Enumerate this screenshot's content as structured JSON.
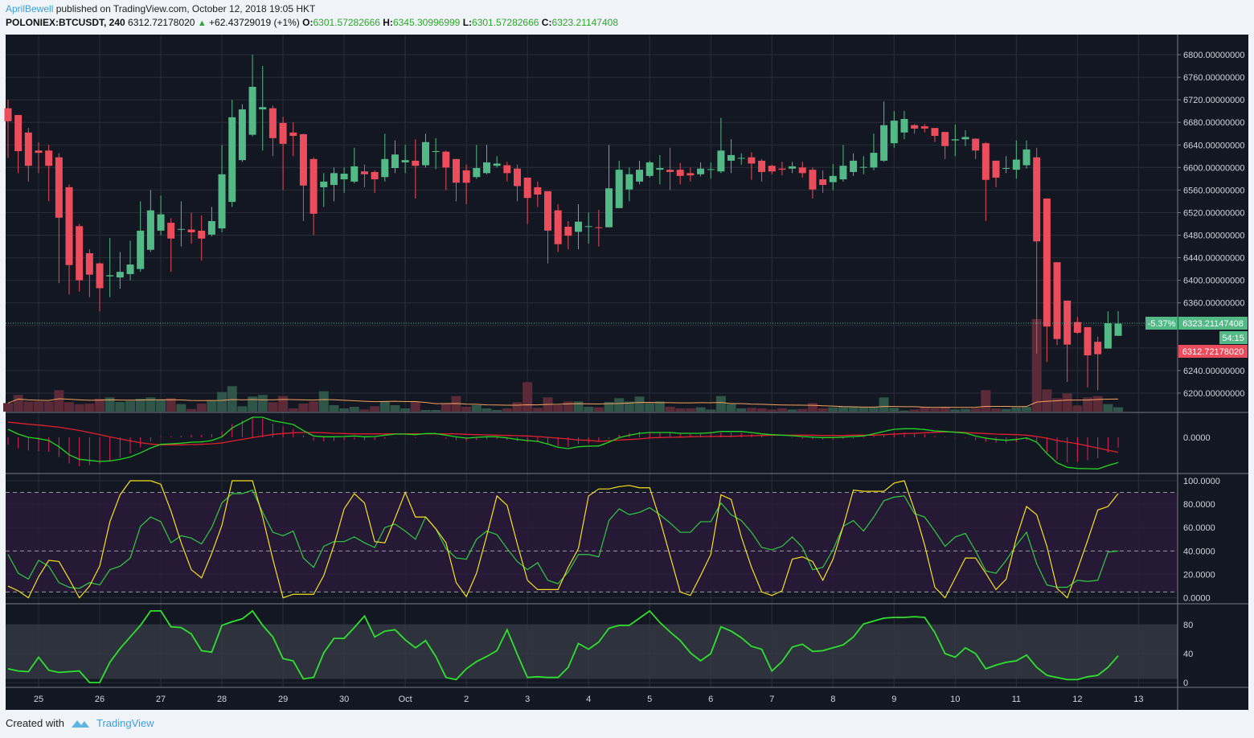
{
  "header": {
    "author": "AprilBewell",
    "published": "published on TradingView.com, October 12, 2018 19:05 HKT",
    "symbol": "POLONIEX:BTCUSDT, 240",
    "last_price": "6312.72178020",
    "change": "+62.43729019 (+1%)",
    "ohlc": [
      {
        "label": "O:",
        "value": "6301.57282666"
      },
      {
        "label": "H:",
        "value": "6345.30996999"
      },
      {
        "label": "L:",
        "value": "6301.57282666"
      },
      {
        "label": "C:",
        "value": "6323.21147408"
      }
    ]
  },
  "price_scale": {
    "current_change_pct": "-5.37%",
    "current_close_label": "6323.21147408",
    "countdown": "54:15",
    "last_price_label": "6312.72178020"
  },
  "footer": {
    "created_with": "Created with",
    "brand": "TradingView"
  },
  "colors": {
    "up": "#53b987",
    "down": "#eb4d5c",
    "background": "#131722",
    "grid": "#2a2e39",
    "accent": "#3b9fe0"
  },
  "chart_data": {
    "type": "candlestick",
    "title": "POLONIEX:BTCUSDT, 240",
    "timeframe_hours": 4,
    "ylim": [
      6150,
      6830
    ],
    "y_ticks": [
      "6800.00000000",
      "6760.00000000",
      "6720.00000000",
      "6680.00000000",
      "6640.00000000",
      "6600.00000000",
      "6560.00000000",
      "6520.00000000",
      "6480.00000000",
      "6440.00000000",
      "6400.00000000",
      "6360.00000000",
      "6240.00000000",
      "6200.00000000"
    ],
    "y_tick_values": [
      6800,
      6760,
      6720,
      6680,
      6640,
      6600,
      6560,
      6520,
      6480,
      6440,
      6400,
      6360,
      6240,
      6200
    ],
    "x_ticks": [
      {
        "label": "25",
        "index": 3
      },
      {
        "label": "26",
        "index": 9
      },
      {
        "label": "27",
        "index": 15
      },
      {
        "label": "28",
        "index": 21
      },
      {
        "label": "29",
        "index": 27
      },
      {
        "label": "30",
        "index": 33
      },
      {
        "label": "Oct",
        "index": 39
      },
      {
        "label": "2",
        "index": 45
      },
      {
        "label": "3",
        "index": 51
      },
      {
        "label": "4",
        "index": 57
      },
      {
        "label": "5",
        "index": 63
      },
      {
        "label": "6",
        "index": 69
      },
      {
        "label": "7",
        "index": 75
      },
      {
        "label": "8",
        "index": 81
      },
      {
        "label": "9",
        "index": 87
      },
      {
        "label": "10",
        "index": 93
      },
      {
        "label": "11",
        "index": 99
      },
      {
        "label": "12",
        "index": 105
      },
      {
        "label": "13",
        "index": 111
      }
    ],
    "ohlc": [
      [
        6705,
        6720,
        6617,
        6682
      ],
      [
        6693,
        6693,
        6590,
        6629
      ],
      [
        6662,
        6670,
        6575,
        6603
      ],
      [
        6630,
        6645,
        6590,
        6626
      ],
      [
        6630,
        6640,
        6540,
        6603
      ],
      [
        6618,
        6625,
        6395,
        6511
      ],
      [
        6565,
        6570,
        6375,
        6427
      ],
      [
        6496,
        6500,
        6380,
        6400
      ],
      [
        6448,
        6455,
        6370,
        6410
      ],
      [
        6430,
        6432,
        6345,
        6386
      ],
      [
        6407,
        6475,
        6370,
        6409
      ],
      [
        6405,
        6450,
        6385,
        6415
      ],
      [
        6411,
        6470,
        6400,
        6428
      ],
      [
        6420,
        6540,
        6415,
        6488
      ],
      [
        6454,
        6560,
        6450,
        6524
      ],
      [
        6488,
        6550,
        6480,
        6517
      ],
      [
        6502,
        6510,
        6415,
        6474
      ],
      [
        6490,
        6540,
        6460,
        6491
      ],
      [
        6490,
        6520,
        6465,
        6485
      ],
      [
        6488,
        6515,
        6435,
        6474
      ],
      [
        6481,
        6530,
        6478,
        6505
      ],
      [
        6492,
        6640,
        6485,
        6588
      ],
      [
        6539,
        6720,
        6530,
        6689
      ],
      [
        6613,
        6712,
        6610,
        6703
      ],
      [
        6658,
        6800,
        6655,
        6743
      ],
      [
        6703,
        6780,
        6630,
        6707
      ],
      [
        6705,
        6710,
        6620,
        6652
      ],
      [
        6679,
        6690,
        6560,
        6642
      ],
      [
        6662,
        6680,
        6620,
        6656
      ],
      [
        6659,
        6660,
        6505,
        6568
      ],
      [
        6615,
        6618,
        6480,
        6518
      ],
      [
        6565,
        6590,
        6530,
        6575
      ],
      [
        6569,
        6600,
        6540,
        6590
      ],
      [
        6579,
        6600,
        6555,
        6589
      ],
      [
        6575,
        6635,
        6572,
        6602
      ],
      [
        6593,
        6605,
        6565,
        6588
      ],
      [
        6592,
        6595,
        6555,
        6579
      ],
      [
        6583,
        6660,
        6575,
        6615
      ],
      [
        6599,
        6648,
        6590,
        6623
      ],
      [
        6609,
        6640,
        6590,
        6613
      ],
      [
        6612,
        6650,
        6545,
        6603
      ],
      [
        6604,
        6660,
        6600,
        6645
      ],
      [
        6628,
        6652,
        6597,
        6629
      ],
      [
        6628,
        6630,
        6560,
        6600
      ],
      [
        6615,
        6615,
        6540,
        6573
      ],
      [
        6595,
        6605,
        6535,
        6573
      ],
      [
        6583,
        6640,
        6580,
        6599
      ],
      [
        6590,
        6640,
        6588,
        6609
      ],
      [
        6603,
        6620,
        6600,
        6607
      ],
      [
        6604,
        6610,
        6575,
        6590
      ],
      [
        6598,
        6605,
        6540,
        6567
      ],
      [
        6582,
        6582,
        6500,
        6546
      ],
      [
        6565,
        6575,
        6530,
        6552
      ],
      [
        6558,
        6558,
        6430,
        6488
      ],
      [
        6524,
        6535,
        6450,
        6464
      ],
      [
        6495,
        6505,
        6455,
        6479
      ],
      [
        6486,
        6535,
        6455,
        6504
      ],
      [
        6495,
        6520,
        6465,
        6496
      ],
      [
        6494,
        6525,
        6460,
        6493
      ],
      [
        6494,
        6640,
        6494,
        6563
      ],
      [
        6528,
        6612,
        6528,
        6596
      ],
      [
        6561,
        6600,
        6540,
        6588
      ],
      [
        6575,
        6612,
        6570,
        6596
      ],
      [
        6585,
        6612,
        6582,
        6609
      ],
      [
        6596,
        6622,
        6570,
        6599
      ],
      [
        6596,
        6635,
        6560,
        6592
      ],
      [
        6596,
        6608,
        6570,
        6585
      ],
      [
        6590,
        6600,
        6575,
        6586
      ],
      [
        6588,
        6609,
        6584,
        6598
      ],
      [
        6596,
        6609,
        6580,
        6597
      ],
      [
        6593,
        6688,
        6590,
        6630
      ],
      [
        6612,
        6650,
        6590,
        6622
      ],
      [
        6616,
        6625,
        6605,
        6617
      ],
      [
        6618,
        6627,
        6578,
        6607
      ],
      [
        6612,
        6615,
        6575,
        6592
      ],
      [
        6603,
        6605,
        6588,
        6593
      ],
      [
        6598,
        6610,
        6586,
        6596
      ],
      [
        6598,
        6610,
        6590,
        6602
      ],
      [
        6600,
        6610,
        6582,
        6590
      ],
      [
        6596,
        6600,
        6545,
        6561
      ],
      [
        6579,
        6595,
        6555,
        6569
      ],
      [
        6574,
        6606,
        6560,
        6585
      ],
      [
        6579,
        6640,
        6575,
        6603
      ],
      [
        6592,
        6625,
        6585,
        6612
      ],
      [
        6600,
        6620,
        6588,
        6601
      ],
      [
        6600,
        6660,
        6595,
        6626
      ],
      [
        6612,
        6717,
        6610,
        6675
      ],
      [
        6643,
        6700,
        6635,
        6683
      ],
      [
        6662,
        6700,
        6650,
        6686
      ],
      [
        6675,
        6677,
        6660,
        6669
      ],
      [
        6673,
        6677,
        6662,
        6669
      ],
      [
        6670,
        6670,
        6645,
        6656
      ],
      [
        6663,
        6663,
        6615,
        6638
      ],
      [
        6648,
        6676,
        6620,
        6650
      ],
      [
        6650,
        6666,
        6638,
        6654
      ],
      [
        6651,
        6652,
        6615,
        6630
      ],
      [
        6643,
        6645,
        6505,
        6578
      ],
      [
        6612,
        6612,
        6565,
        6582
      ],
      [
        6598,
        6620,
        6590,
        6599
      ],
      [
        6596,
        6648,
        6580,
        6614
      ],
      [
        6604,
        6648,
        6598,
        6632
      ],
      [
        6618,
        6635,
        6270,
        6469
      ],
      [
        6545,
        6545,
        6255,
        6318
      ],
      [
        6432,
        6432,
        6285,
        6296
      ],
      [
        6364,
        6364,
        6220,
        6286
      ],
      [
        6326,
        6335,
        6305,
        6307
      ],
      [
        6317,
        6317,
        6210,
        6267
      ],
      [
        6291,
        6300,
        6205,
        6269
      ],
      [
        6279,
        6345,
        6279,
        6324
      ],
      [
        6301.57282666,
        6345.30996999,
        6301.57282666,
        6323.21147408
      ]
    ],
    "volume_relative": [
      32,
      62,
      38,
      38,
      38,
      80,
      35,
      28,
      30,
      48,
      53,
      36,
      40,
      48,
      53,
      46,
      50,
      28,
      10,
      30,
      40,
      73,
      95,
      20,
      56,
      62,
      35,
      58,
      12,
      30,
      38,
      76,
      24,
      12,
      18,
      8,
      20,
      38,
      24,
      12,
      38,
      6,
      6,
      30,
      58,
      18,
      24,
      12,
      6,
      12,
      35,
      110,
      14,
      53,
      24,
      38,
      38,
      18,
      16,
      36,
      50,
      38,
      56,
      32,
      38,
      18,
      12,
      12,
      16,
      8,
      58,
      28,
      12,
      14,
      12,
      8,
      12,
      8,
      10,
      32,
      12,
      16,
      18,
      18,
      16,
      18,
      53,
      14,
      4,
      8,
      18,
      13,
      18,
      8,
      10,
      13,
      80,
      12,
      10,
      16,
      18,
      345,
      83,
      50,
      68,
      23,
      53,
      58,
      28,
      16
    ],
    "macd": {
      "macd": [
        15,
        6,
        0,
        -2.5,
        -6,
        -17.5,
        -32.5,
        -41,
        -43,
        -45,
        -44,
        -41,
        -36.5,
        -29,
        -20,
        -13,
        -12,
        -11,
        -9,
        -8.5,
        -6,
        1,
        17.5,
        27.5,
        37.5,
        37.5,
        31,
        27.5,
        24,
        12.5,
        2.5,
        1,
        1,
        1.5,
        2.5,
        1,
        1.5,
        4,
        6,
        6,
        5,
        7,
        7,
        4,
        1,
        -1.5,
        0,
        1,
        1,
        -1,
        -4,
        -6,
        -7.5,
        -12.5,
        -18.5,
        -21,
        -17.5,
        -16.5,
        -16,
        -9,
        -0.5,
        4,
        7.5,
        9,
        9,
        9,
        7.5,
        7.5,
        7.5,
        8.5,
        11,
        11,
        11,
        9,
        6.5,
        5,
        4,
        3,
        1.5,
        0.5,
        -0.5,
        -0.5,
        0.5,
        1.5,
        2.5,
        6.5,
        11,
        15,
        16,
        16,
        14.5,
        12,
        11,
        9.5,
        8,
        2.5,
        -1.5,
        -4,
        -5.5,
        -4,
        -1,
        -9,
        -30,
        -47.5,
        -56,
        -58,
        -58.5,
        -59,
        -52.5,
        -47
      ],
      "signal": [
        28.5,
        26.5,
        24.5,
        23,
        21,
        19,
        16,
        13,
        9,
        5,
        1,
        -3,
        -6.5,
        -10,
        -12.5,
        -14,
        -14,
        -14,
        -13.5,
        -13,
        -12,
        -10.5,
        -7,
        -4,
        -0.5,
        2.5,
        5.5,
        7,
        8.5,
        9,
        9,
        8.5,
        7.5,
        7,
        6.5,
        6.5,
        6.5,
        6.5,
        6.5,
        6.5,
        6.5,
        6.5,
        6.5,
        6.5,
        6.5,
        5.5,
        5,
        4.5,
        4,
        3.5,
        3,
        2.5,
        1.5,
        0,
        -1.5,
        -3,
        -5,
        -5.5,
        -7.5,
        -6.5,
        -5,
        -4,
        -3,
        -1,
        -0.5,
        0,
        0.5,
        1,
        1.5,
        1.5,
        2,
        2,
        2.5,
        3,
        3.5,
        4,
        4,
        4,
        4,
        4,
        3.5,
        3.5,
        3.5,
        4,
        4,
        4,
        5,
        6,
        7,
        7.5,
        8.5,
        9.5,
        10,
        10,
        9,
        8,
        7,
        6,
        5.5,
        5,
        4,
        1.5,
        -1.5,
        -6,
        -9,
        -12,
        -16,
        -20,
        -24,
        -28
      ],
      "axis_label": "0.0000"
    },
    "stoch_rsi": {
      "k": [
        10,
        6,
        0,
        18,
        32,
        31,
        16,
        0,
        10,
        27,
        65,
        88,
        100,
        100,
        100,
        97,
        74,
        47,
        24,
        17,
        38,
        62,
        100,
        100,
        100,
        69,
        33,
        0,
        3,
        3,
        3,
        19,
        45,
        76,
        89,
        81,
        48,
        47,
        68,
        90,
        69,
        69,
        59,
        47,
        13,
        1,
        21,
        53,
        87,
        79,
        46,
        15,
        7,
        7,
        7,
        26,
        42,
        87,
        93,
        93,
        95,
        96,
        94,
        94,
        67,
        36,
        5,
        2,
        19,
        37,
        88,
        84,
        52,
        26,
        5,
        2,
        6,
        33,
        35,
        31,
        15,
        33,
        61,
        92,
        91,
        91,
        91,
        98,
        100,
        75,
        45,
        9,
        0,
        17,
        34,
        34,
        21,
        7,
        16,
        51,
        78,
        71,
        44,
        8,
        0,
        24,
        49,
        75,
        78,
        89
      ],
      "d": [
        37,
        21,
        16,
        32,
        27,
        13,
        9,
        8,
        13,
        11,
        24,
        27,
        34,
        61,
        69,
        65,
        47,
        53,
        51,
        46,
        60,
        81,
        89,
        89,
        92,
        73,
        56,
        53,
        57,
        34,
        26,
        44,
        48,
        48,
        52,
        47,
        43,
        60,
        63,
        57,
        50,
        69,
        59,
        42,
        34,
        33,
        50,
        57,
        54,
        42,
        31,
        24,
        30,
        15,
        12,
        22,
        37,
        37,
        35,
        66,
        76,
        71,
        73,
        77,
        71,
        64,
        56,
        56,
        65,
        65,
        81,
        71,
        66,
        56,
        43,
        41,
        44,
        52,
        43,
        24,
        26,
        41,
        61,
        66,
        57,
        69,
        83,
        86,
        87,
        72,
        69,
        57,
        44,
        52,
        55,
        40,
        23,
        21,
        32,
        45,
        56,
        29,
        11,
        9,
        9,
        15,
        14,
        15,
        39,
        40
      ],
      "levels": [
        90,
        40,
        5
      ],
      "y_ticks": [
        "100.0000",
        "80.0000",
        "60.0000",
        "40.0000",
        "20.0000",
        "0.0000"
      ],
      "y_tick_values": [
        100,
        80,
        60,
        40,
        20,
        0
      ]
    },
    "rsi": {
      "values": [
        19,
        16,
        15,
        35,
        17,
        14,
        15,
        16,
        0,
        0,
        28,
        47,
        63,
        79,
        99,
        99,
        77,
        76,
        67,
        44,
        42,
        79,
        84,
        88,
        99,
        79,
        63,
        33,
        30,
        5,
        7,
        41,
        61,
        61,
        76,
        92,
        63,
        71,
        73,
        59,
        48,
        58,
        36,
        7,
        4,
        19,
        29,
        36,
        44,
        73,
        39,
        7,
        8,
        7,
        7,
        21,
        54,
        46,
        56,
        75,
        79,
        79,
        89,
        99,
        83,
        70,
        58,
        41,
        30,
        40,
        77,
        71,
        62,
        50,
        46,
        16,
        29,
        49,
        53,
        43,
        44,
        48,
        52,
        63,
        81,
        85,
        89,
        90,
        90,
        91,
        90,
        69,
        40,
        35,
        48,
        40,
        19,
        24,
        28,
        30,
        38,
        21,
        10,
        7,
        4,
        4,
        8,
        10,
        21,
        37
      ],
      "band": [
        5,
        80
      ],
      "y_ticks": [
        "80",
        "40",
        "0"
      ],
      "y_tick_values": [
        80,
        40,
        0
      ]
    }
  }
}
